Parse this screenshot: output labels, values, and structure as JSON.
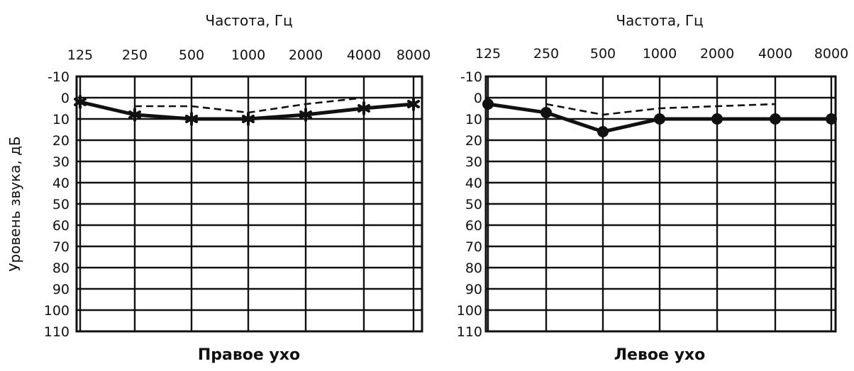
{
  "chart_data": [
    {
      "type": "line",
      "id": "right",
      "xlabel": "Частота, Гц",
      "ylabel": "Уровень звука, дБ",
      "caption": "Правое ухо",
      "x_ticks": [
        "125",
        "250",
        "500",
        "1000",
        "2000",
        "4000",
        "8000"
      ],
      "y_ticks": [
        "-10",
        "0",
        "10",
        "20",
        "30",
        "40",
        "50",
        "60",
        "70",
        "80",
        "90",
        "100",
        "110"
      ],
      "ylim": [
        -10,
        110
      ],
      "y_inverted": true,
      "grid": true,
      "series": [
        {
          "style": "solid",
          "marker": "cross",
          "x": [
            "125",
            "250",
            "500",
            "1000",
            "2000",
            "4000",
            "8000"
          ],
          "y": [
            2,
            8,
            10,
            10,
            8,
            5,
            3
          ]
        },
        {
          "style": "dashed",
          "marker": "none",
          "x": [
            "250",
            "500",
            "1000",
            "2000",
            "4000"
          ],
          "y": [
            4,
            4,
            7,
            3,
            0
          ]
        }
      ]
    },
    {
      "type": "line",
      "id": "left",
      "xlabel": "Частота, Гц",
      "ylabel": "",
      "caption": "Левое ухо",
      "x_ticks": [
        "125",
        "250",
        "500",
        "1000",
        "2000",
        "4000",
        "8000"
      ],
      "y_ticks": [
        "-10",
        "0",
        "10",
        "20",
        "30",
        "40",
        "50",
        "60",
        "70",
        "80",
        "90",
        "100",
        "110"
      ],
      "ylim": [
        -10,
        110
      ],
      "y_inverted": true,
      "grid": true,
      "series": [
        {
          "style": "solid",
          "marker": "dot",
          "x": [
            "125",
            "250",
            "500",
            "1000",
            "2000",
            "4000",
            "8000"
          ],
          "y": [
            3,
            7,
            16,
            10,
            10,
            10,
            10
          ]
        },
        {
          "style": "dashed",
          "marker": "none",
          "x": [
            "250",
            "500",
            "1000",
            "2000",
            "4000"
          ],
          "y": [
            3,
            8,
            5,
            4,
            3
          ]
        }
      ]
    }
  ]
}
